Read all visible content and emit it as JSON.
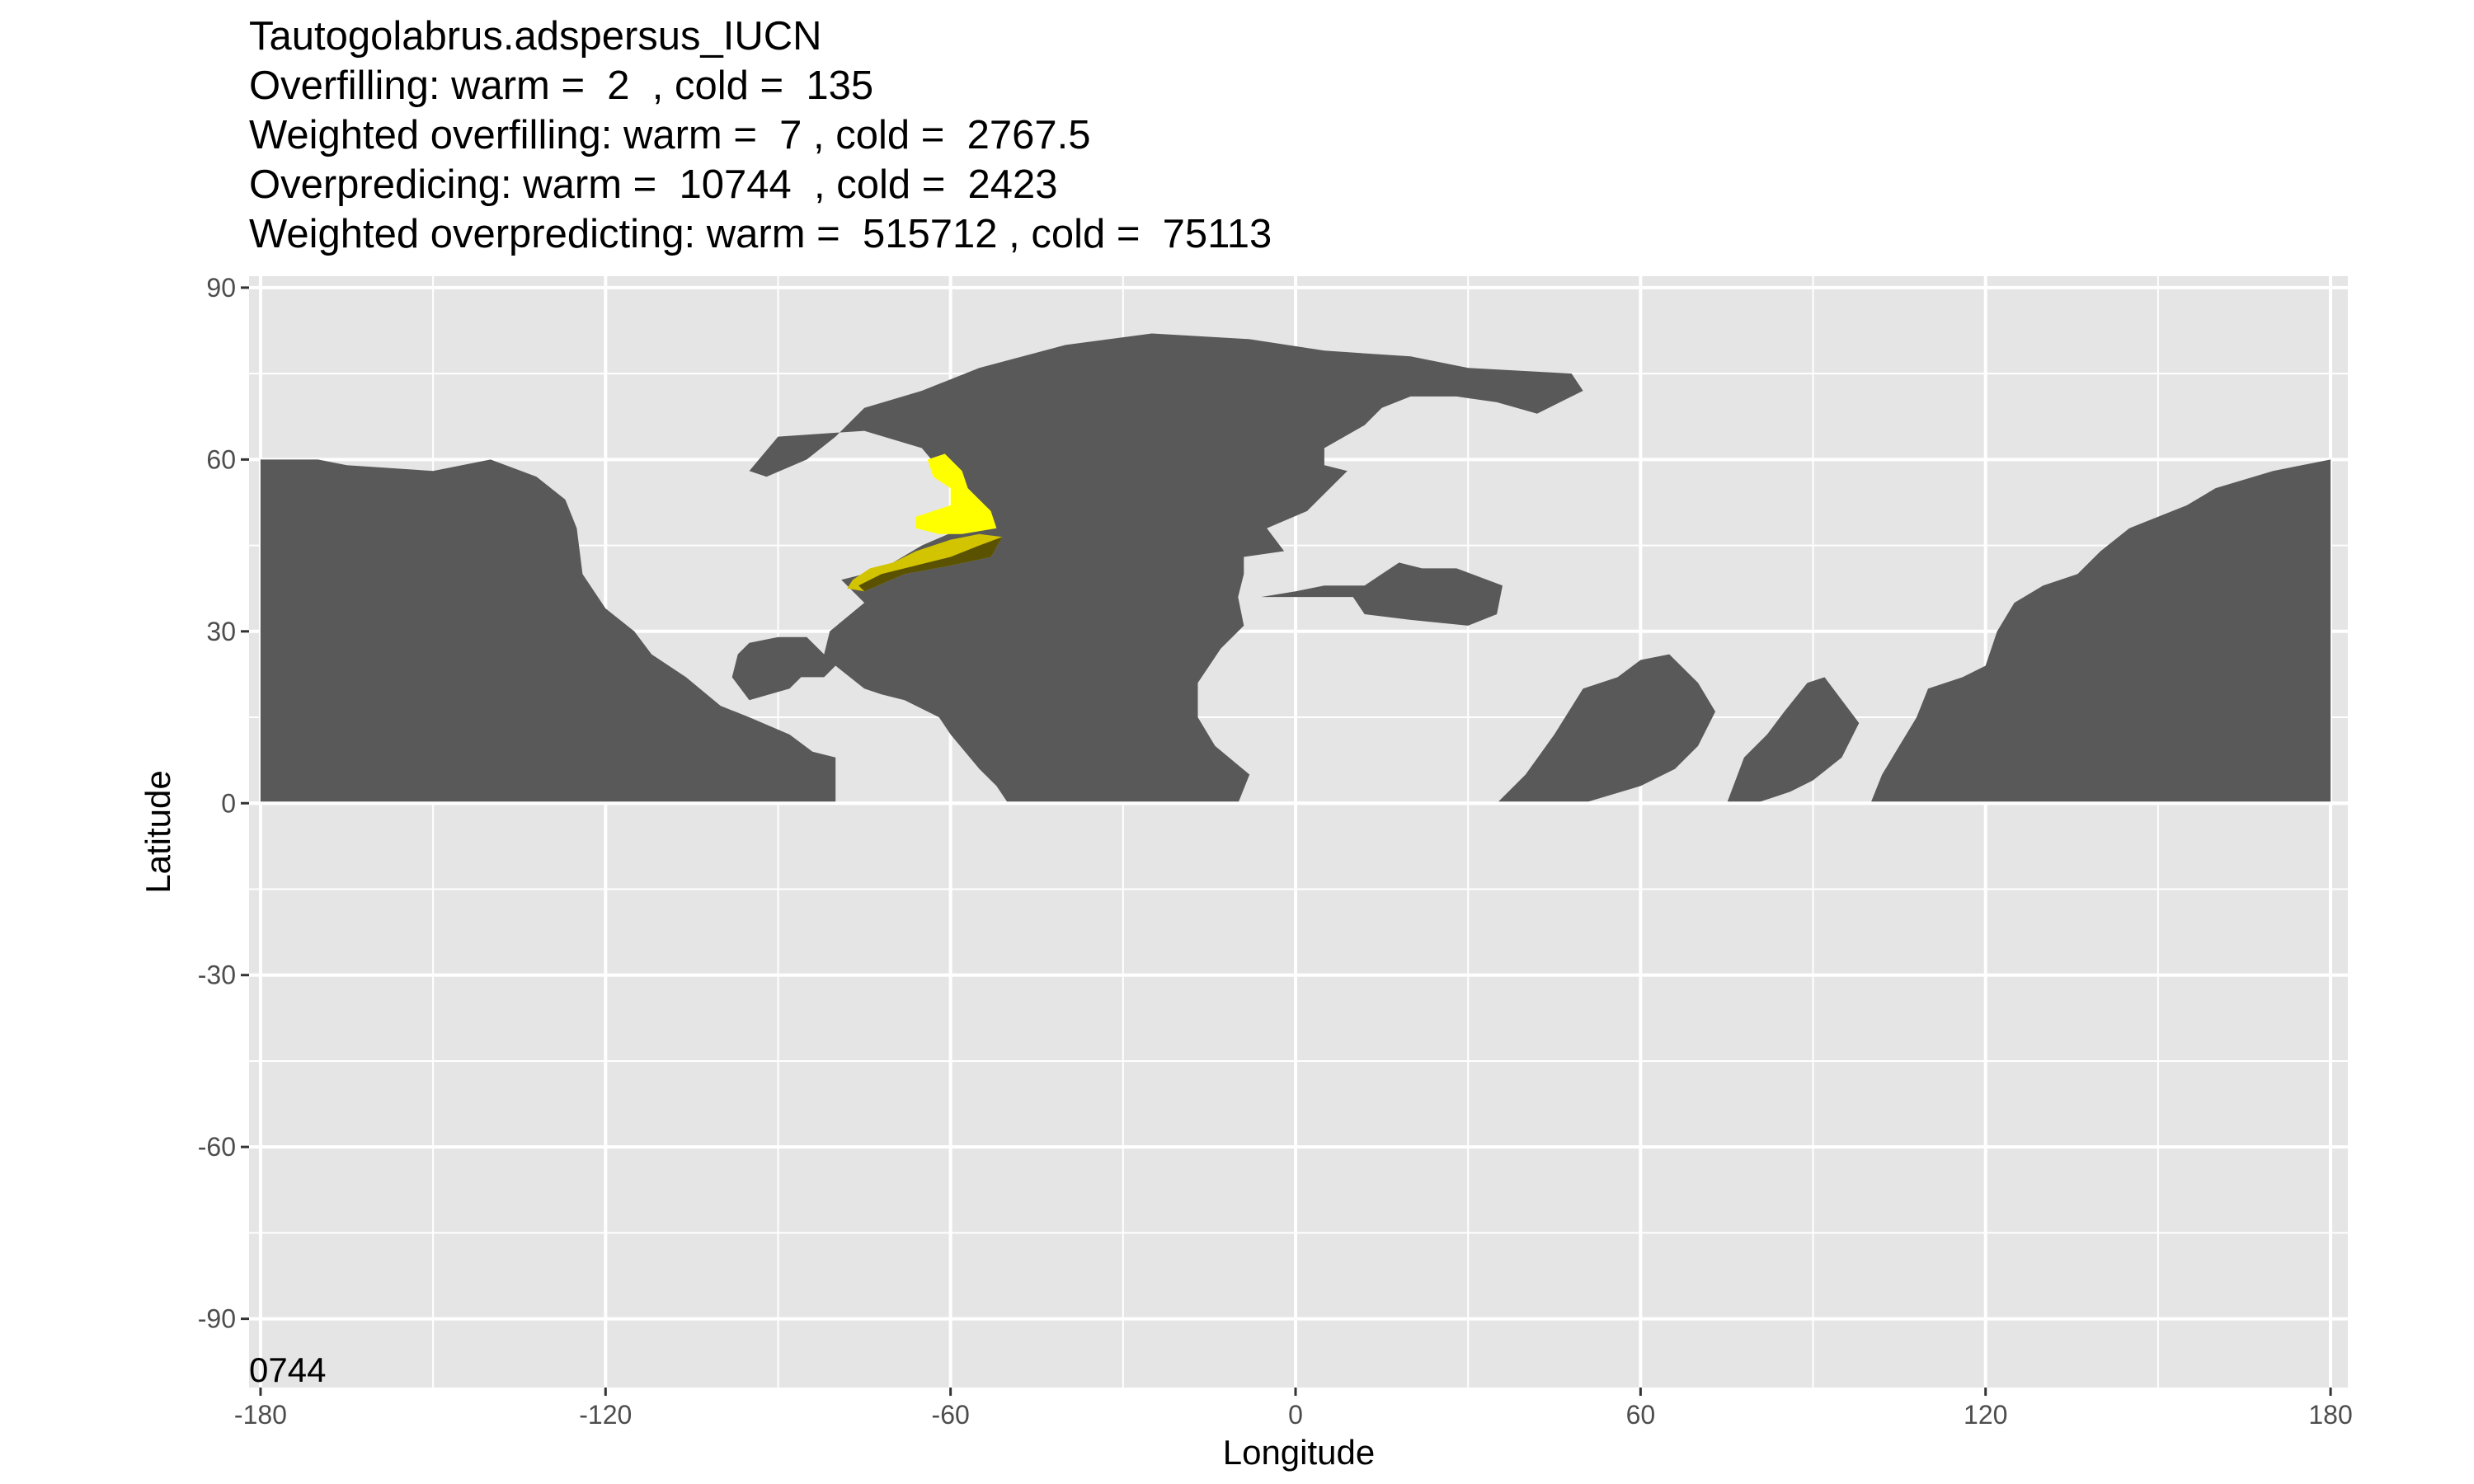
{
  "chart_data": {
    "type": "heatmap",
    "title_lines": [
      "Tautogolabrus.adspersus_IUCN",
      "Overfilling: warm =  2  , cold =  135",
      "Weighted overfilling: warm =  7 , cold =  2767.5",
      "Overpredicing: warm =  10744  , cold =  2423",
      "Weighted overpredicting: warm =  515712 , cold =  75113"
    ],
    "xlabel": "Longitude",
    "ylabel": "Latitude",
    "xlim": [
      -182,
      183
    ],
    "ylim": [
      -102,
      92
    ],
    "x_ticks": [
      -180,
      -120,
      -60,
      0,
      60,
      120,
      180
    ],
    "y_ticks": [
      90,
      60,
      30,
      0,
      -30,
      -60,
      -90
    ],
    "x_tick_labels": [
      "-180",
      "-120",
      "-60",
      "0",
      "60",
      "120",
      "180"
    ],
    "y_tick_labels": [
      "90",
      "60",
      "30",
      "0",
      "-30",
      "-60",
      "-90"
    ],
    "grid": true,
    "panel_background": "#e5e5e5",
    "grid_color": "#ffffff",
    "corner_annotation": "0744",
    "layers": [
      {
        "color": "#595959",
        "polygons": [
          [
            [
              -180,
              60
            ],
            [
              -170,
              60
            ],
            [
              -165,
              59
            ],
            [
              -150,
              58
            ],
            [
              -140,
              60
            ],
            [
              -132,
              57
            ],
            [
              -127,
              53
            ],
            [
              -125,
              48
            ],
            [
              -124,
              40
            ],
            [
              -120,
              34
            ],
            [
              -115,
              30
            ],
            [
              -112,
              26
            ],
            [
              -106,
              22
            ],
            [
              -100,
              17
            ],
            [
              -95,
              15
            ],
            [
              -88,
              12
            ],
            [
              -84,
              9
            ],
            [
              -80,
              8
            ],
            [
              -80,
              0
            ],
            [
              -180,
              0
            ]
          ],
          [
            [
              -79,
              39
            ],
            [
              -75,
              35
            ],
            [
              -81,
              30
            ],
            [
              -82,
              26
            ],
            [
              -85,
              29
            ],
            [
              -90,
              29
            ],
            [
              -95,
              28
            ],
            [
              -97,
              26
            ],
            [
              -98,
              22
            ],
            [
              -95,
              18
            ],
            [
              -88,
              20
            ],
            [
              -86,
              22
            ],
            [
              -82,
              22
            ],
            [
              -80,
              24
            ],
            [
              -75,
              20
            ],
            [
              -72,
              19
            ],
            [
              -68,
              18
            ],
            [
              -62,
              15
            ],
            [
              -60,
              12
            ],
            [
              -55,
              6
            ],
            [
              -52,
              3
            ],
            [
              -50,
              0
            ],
            [
              -10,
              0
            ],
            [
              -8,
              5
            ],
            [
              -14,
              10
            ],
            [
              -17,
              15
            ],
            [
              -17,
              21
            ],
            [
              -13,
              27
            ],
            [
              -9,
              31
            ],
            [
              -10,
              36
            ],
            [
              -9,
              40
            ],
            [
              -9,
              43
            ],
            [
              -2,
              44
            ],
            [
              -5,
              48
            ],
            [
              2,
              51
            ],
            [
              6,
              55
            ],
            [
              9,
              58
            ],
            [
              5,
              59
            ],
            [
              5,
              62
            ],
            [
              12,
              66
            ],
            [
              15,
              69
            ],
            [
              20,
              71
            ],
            [
              28,
              71
            ],
            [
              35,
              70
            ],
            [
              42,
              68
            ],
            [
              50,
              72
            ],
            [
              48,
              75
            ],
            [
              30,
              76
            ],
            [
              20,
              78
            ],
            [
              5,
              79
            ],
            [
              -8,
              81
            ],
            [
              -25,
              82
            ],
            [
              -40,
              80
            ],
            [
              -55,
              76
            ],
            [
              -65,
              72
            ],
            [
              -75,
              69
            ],
            [
              -80,
              64
            ],
            [
              -85,
              60
            ],
            [
              -92,
              57
            ],
            [
              -95,
              58
            ],
            [
              -90,
              64
            ],
            [
              -75,
              65
            ],
            [
              -65,
              62
            ],
            [
              -60,
              56
            ],
            [
              -56,
              52
            ],
            [
              -58,
              48
            ],
            [
              -65,
              45
            ],
            [
              -70,
              42
            ],
            [
              -75,
              40
            ]
          ],
          [
            [
              -6,
              36
            ],
            [
              0,
              37
            ],
            [
              5,
              38
            ],
            [
              12,
              38
            ],
            [
              15,
              40
            ],
            [
              18,
              42
            ],
            [
              22,
              41
            ],
            [
              28,
              41
            ],
            [
              36,
              38
            ],
            [
              35,
              33
            ],
            [
              30,
              31
            ],
            [
              20,
              32
            ],
            [
              12,
              33
            ],
            [
              10,
              36
            ],
            [
              0,
              36
            ]
          ],
          [
            [
              35,
              0
            ],
            [
              40,
              5
            ],
            [
              45,
              12
            ],
            [
              50,
              20
            ],
            [
              56,
              22
            ],
            [
              60,
              25
            ],
            [
              65,
              26
            ],
            [
              70,
              21
            ],
            [
              73,
              16
            ],
            [
              70,
              10
            ],
            [
              66,
              6
            ],
            [
              60,
              3
            ],
            [
              50,
              0
            ]
          ],
          [
            [
              75,
              0
            ],
            [
              78,
              8
            ],
            [
              82,
              12
            ],
            [
              85,
              16
            ],
            [
              89,
              21
            ],
            [
              92,
              22
            ],
            [
              95,
              18
            ],
            [
              98,
              14
            ],
            [
              95,
              8
            ],
            [
              90,
              4
            ],
            [
              86,
              2
            ],
            [
              80,
              0
            ]
          ],
          [
            [
              100,
              0
            ],
            [
              102,
              5
            ],
            [
              105,
              10
            ],
            [
              108,
              15
            ],
            [
              110,
              20
            ],
            [
              116,
              22
            ],
            [
              120,
              24
            ],
            [
              122,
              30
            ],
            [
              125,
              35
            ],
            [
              130,
              38
            ],
            [
              136,
              40
            ],
            [
              140,
              44
            ],
            [
              145,
              48
            ],
            [
              155,
              52
            ],
            [
              160,
              55
            ],
            [
              170,
              58
            ],
            [
              180,
              60
            ],
            [
              180,
              0
            ]
          ]
        ]
      },
      {
        "color": "#d2c400",
        "polygons": [
          [
            [
              -77,
              39
            ],
            [
              -74,
              41
            ],
            [
              -70,
              42
            ],
            [
              -66,
              44
            ],
            [
              -60,
              46
            ],
            [
              -55,
              47
            ],
            [
              -51,
              46.5
            ],
            [
              -53,
              43
            ],
            [
              -60,
              41.5
            ],
            [
              -68,
              40
            ],
            [
              -75,
              37
            ],
            [
              -78,
              37.5
            ]
          ]
        ]
      },
      {
        "color": "#5a5200",
        "polygons": [
          [
            [
              -75,
              37
            ],
            [
              -68,
              40
            ],
            [
              -60,
              41.5
            ],
            [
              -53,
              43
            ],
            [
              -51,
              46.5
            ],
            [
              -55,
              45
            ],
            [
              -60,
              43
            ],
            [
              -66,
              41.5
            ],
            [
              -72,
              40
            ],
            [
              -76,
              38
            ]
          ]
        ]
      },
      {
        "color": "#ffff00",
        "polygons": [
          [
            [
              -64,
              60
            ],
            [
              -61,
              61
            ],
            [
              -58,
              58
            ],
            [
              -57,
              55
            ],
            [
              -55,
              53
            ],
            [
              -53,
              51
            ],
            [
              -52,
              48
            ],
            [
              -55,
              47.5
            ],
            [
              -58,
              47
            ],
            [
              -62,
              47
            ],
            [
              -66,
              48
            ],
            [
              -66,
              50
            ],
            [
              -63,
              51
            ],
            [
              -60,
              52
            ],
            [
              -60,
              55
            ],
            [
              -63,
              57
            ]
          ]
        ]
      }
    ]
  }
}
